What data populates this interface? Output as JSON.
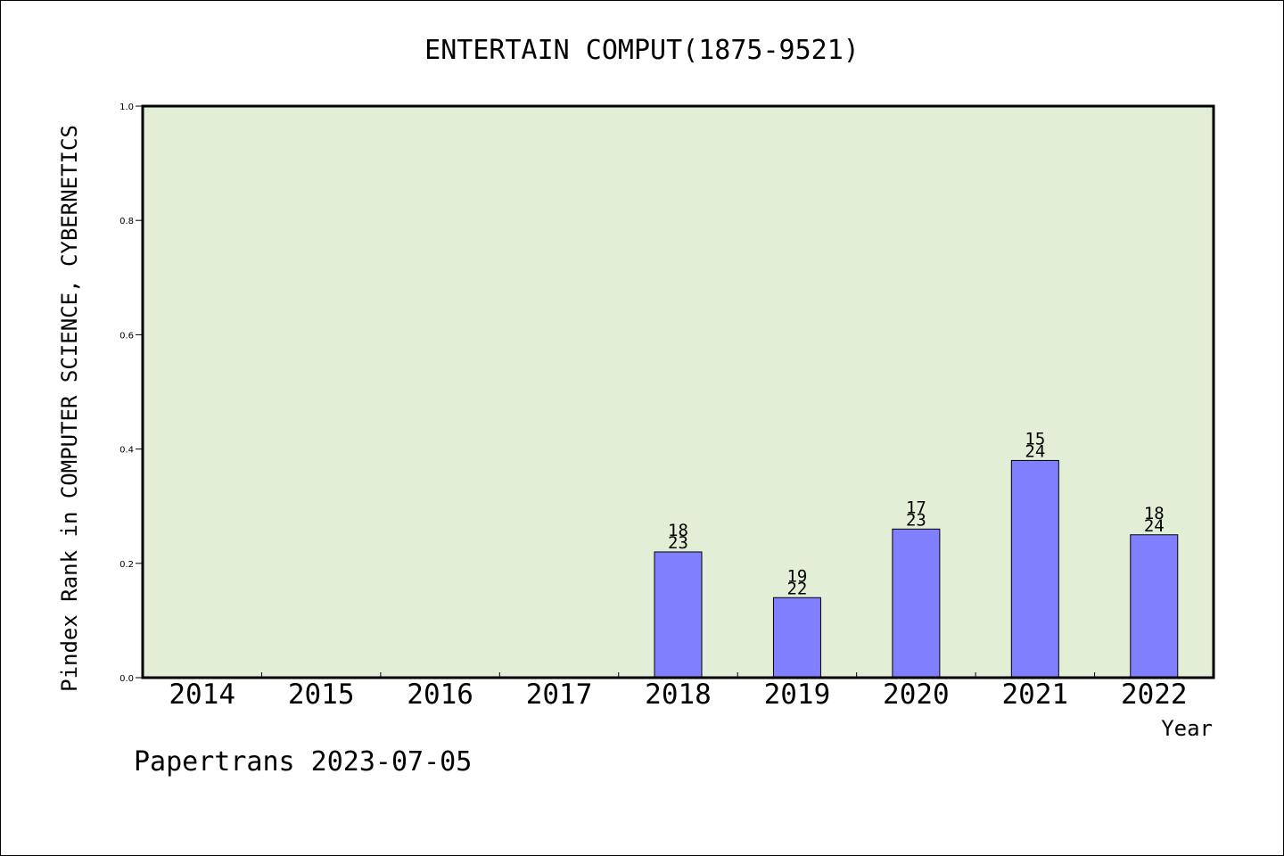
{
  "chart_data": {
    "type": "bar",
    "title": "ENTERTAIN COMPUT(1875-9521)",
    "ylabel": "Pindex Rank in COMPUTER SCIENCE, CYBERNETICS",
    "xlabel": "Year",
    "ylim": [
      0,
      1.0
    ],
    "yticks": [
      "0.0",
      "0.2",
      "0.4",
      "0.6",
      "0.8",
      "1.0"
    ],
    "categories": [
      "2014",
      "2015",
      "2016",
      "2017",
      "2018",
      "2019",
      "2020",
      "2021",
      "2022"
    ],
    "values": [
      null,
      null,
      null,
      null,
      0.22,
      0.14,
      0.26,
      0.38,
      0.25
    ],
    "labels_top": [
      "",
      "",
      "",
      "",
      "18",
      "19",
      "17",
      "15",
      "18"
    ],
    "labels_bottom": [
      "",
      "",
      "",
      "",
      "23",
      "22",
      "23",
      "24",
      "24"
    ],
    "grid": false,
    "colors": {
      "plot_background": "#e2efd6",
      "bar_fill": "#8080ff",
      "bar_stroke": "#000000"
    }
  },
  "footer": {
    "text": "Papertrans 2023-07-05"
  }
}
